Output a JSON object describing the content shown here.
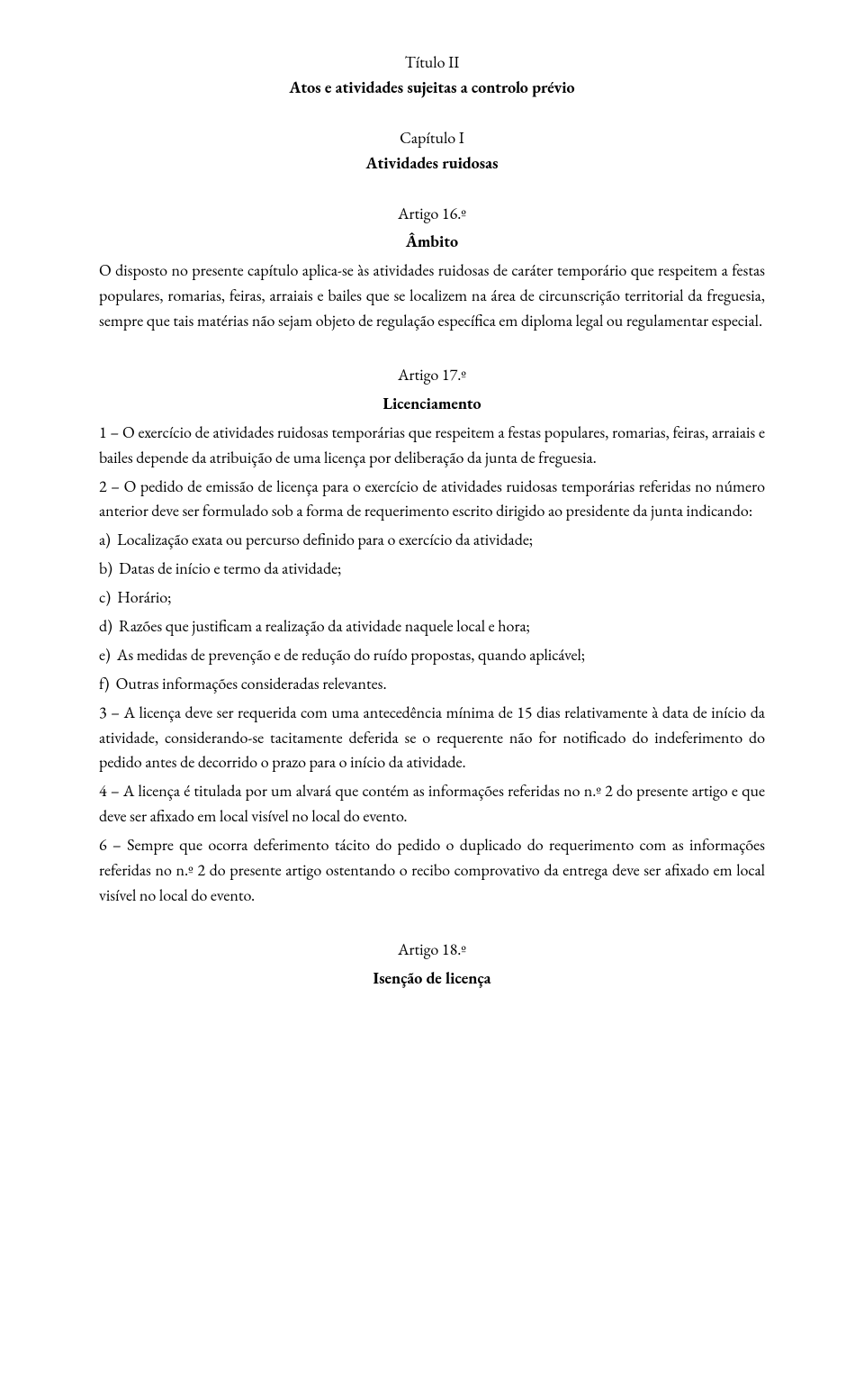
{
  "page": {
    "background_color": "#ffffff",
    "text_color": "#000000",
    "font_family": "Garamond",
    "base_fontsize_pt": 12,
    "line_height": 1.55
  },
  "header": {
    "titulo": "Título II",
    "titulo_sub": "Atos e atividades sujeitas a controlo prévio",
    "capitulo": "Capítulo I",
    "capitulo_sub": "Atividades ruidosas"
  },
  "art16": {
    "num": "Artigo 16.º",
    "heading": "Âmbito",
    "body": "O disposto no presente capítulo aplica-se às atividades ruidosas de caráter temporário que respeitem a festas populares, romarias, feiras, arraiais e bailes que se localizem na área de circunscrição territorial da freguesia, sempre que tais matérias não sejam objeto de regulação específica em diploma legal ou regulamentar especial."
  },
  "art17": {
    "num": "Artigo 17.º",
    "heading": "Licenciamento",
    "p1": "1 – O exercício de atividades ruidosas temporárias que respeitem a festas populares, romarias, feiras, arraiais e bailes depende da atribuição de uma licença por deliberação da junta de freguesia.",
    "p2": "2 – O pedido de emissão de licença para o exercício de atividades ruidosas temporárias referidas no número anterior deve ser formulado sob a forma de requerimento escrito dirigido ao presidente da junta indicando:",
    "list": {
      "a": {
        "lead": "a)  ",
        "text": "Localização exata ou percurso definido para o exercício da atividade;"
      },
      "b": {
        "lead": "b)  ",
        "text": "Datas de início e termo da atividade;"
      },
      "c": {
        "lead": "c)  ",
        "text": "Horário;"
      },
      "d": {
        "lead": "d)  ",
        "text": "Razões que justificam a realização da atividade naquele local e hora;"
      },
      "e": {
        "lead": "e)  ",
        "text": "As medidas de prevenção e de redução do ruído propostas, quando aplicável;"
      },
      "f": {
        "lead": "f)  ",
        "text": "Outras informações consideradas relevantes."
      }
    },
    "p3": "3 – A licença deve ser requerida com uma antecedência mínima de 15 dias relativamente à data de início da atividade, considerando-se tacitamente deferida se o requerente não for notificado do indeferimento do pedido antes de decorrido o prazo para o início da atividade.",
    "p4": "4 – A licença é titulada por um alvará que contém as informações referidas no n.º 2 do presente artigo e que deve ser afixado em local visível no local do evento.",
    "p6": "6 – Sempre que ocorra deferimento tácito do pedido o duplicado do requerimento com as informações referidas no n.º 2 do presente artigo ostentando o recibo comprovativo da entrega deve ser afixado em local visível no local do evento."
  },
  "art18": {
    "num": "Artigo 18.º",
    "heading": "Isenção de licença"
  }
}
